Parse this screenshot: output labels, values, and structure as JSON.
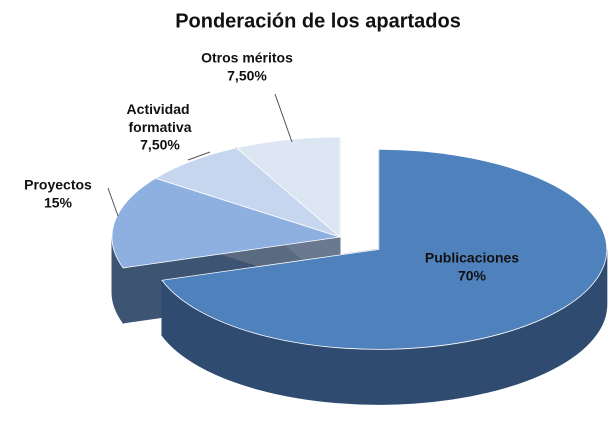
{
  "chart_data": {
    "type": "pie3d",
    "title": "Ponderación de los apartados",
    "categories": [
      "Publicaciones",
      "Proyectos",
      "Actividad formativa",
      "Otros méritos"
    ],
    "values": [
      70,
      15,
      7.5,
      7.5
    ],
    "value_labels": [
      "70%",
      "15%",
      "7,50%",
      "7,50%"
    ],
    "colors": [
      "#4f81bd",
      "#8eb0e0",
      "#c6d6ee",
      "#dce6f2"
    ],
    "side_colors": [
      "#2f4b70",
      "#3e5473",
      "#5a6a80",
      "#6a7890"
    ],
    "exploded": [
      true,
      false,
      false,
      false
    ]
  }
}
